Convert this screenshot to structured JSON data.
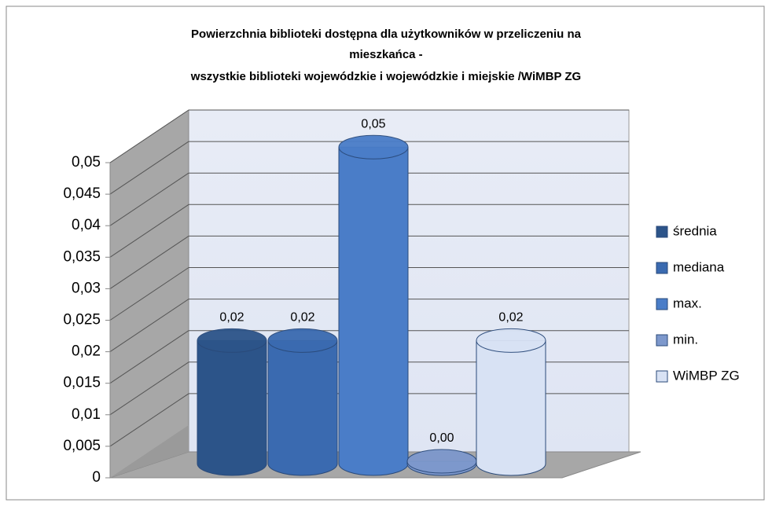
{
  "chart_data": {
    "type": "bar3d",
    "title": [
      "Powierzchnia biblioteki dostępna dla użytkowników w przeliczeniu na",
      "mieszkańca  -",
      "wszystkie biblioteki wojewódzkie i wojewódzkie i miejskie  /WiMBP ZG"
    ],
    "series": [
      {
        "name": "średnia",
        "color": "#2c5489",
        "values": [
          0.021
        ],
        "value_labels": [
          "0,02"
        ]
      },
      {
        "name": "mediana",
        "color": "#3a6ab0",
        "values": [
          0.021
        ],
        "value_labels": [
          "0,02"
        ]
      },
      {
        "name": "max.",
        "color": "#4a7dc8",
        "values": [
          0.054
        ],
        "value_labels": [
          "0,05"
        ]
      },
      {
        "name": "min.",
        "color": "#7d98cc",
        "values": [
          0.0004
        ],
        "value_labels": [
          "0,00"
        ]
      },
      {
        "name": "WiMBP ZG",
        "color": "#d8e2f4",
        "values": [
          0.021
        ],
        "value_labels": [
          "0,02"
        ]
      }
    ],
    "ylim": [
      0,
      0.05
    ],
    "yticks": [
      0,
      {
        "value": 0.005,
        "label": "0,005"
      },
      {
        "value": 0.01,
        "label": "0,01"
      },
      {
        "value": 0.015,
        "label": "0,015"
      },
      {
        "value": 0.02,
        "label": "0,02"
      },
      {
        "value": 0.025,
        "label": "0,025"
      },
      {
        "value": 0.03,
        "label": "0,03"
      },
      {
        "value": 0.035,
        "label": "0,035"
      },
      {
        "value": 0.04,
        "label": "0,04"
      },
      {
        "value": 0.045,
        "label": "0,045"
      },
      {
        "value": 0.05,
        "label": "0,05"
      }
    ],
    "grid": true,
    "legend": "right"
  }
}
